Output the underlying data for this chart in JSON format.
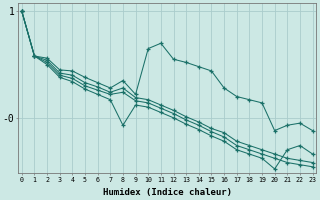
{
  "xlabel": "Humidex (Indice chaleur)",
  "bg_color": "#cce8e4",
  "grid_color": "#aacccc",
  "line_color": "#1a7068",
  "xlim": [
    -0.3,
    23.3
  ],
  "ylim": [
    -0.52,
    1.08
  ],
  "series": [
    {
      "x": [
        0,
        1,
        2,
        3,
        4,
        5,
        6,
        7,
        8,
        9,
        10,
        11,
        12,
        13,
        14,
        15,
        16,
        17,
        18,
        19,
        20,
        21,
        22,
        23
      ],
      "y": [
        1.0,
        0.58,
        0.56,
        0.45,
        0.44,
        0.38,
        0.33,
        0.28,
        0.35,
        0.22,
        0.65,
        0.7,
        0.55,
        0.52,
        0.48,
        0.44,
        0.28,
        0.2,
        0.17,
        0.14,
        -0.12,
        -0.07,
        -0.05,
        -0.12
      ]
    },
    {
      "x": [
        0,
        1,
        2,
        3,
        4,
        5,
        6,
        7,
        8,
        9,
        10,
        11,
        12,
        13,
        14,
        15,
        16,
        17,
        18,
        19,
        20,
        21,
        22,
        23
      ],
      "y": [
        1.0,
        0.58,
        0.54,
        0.42,
        0.4,
        0.33,
        0.29,
        0.24,
        0.28,
        0.19,
        0.17,
        0.12,
        0.07,
        0.01,
        -0.04,
        -0.1,
        -0.14,
        -0.22,
        -0.26,
        -0.3,
        -0.34,
        -0.38,
        -0.4,
        -0.42
      ]
    },
    {
      "x": [
        0,
        1,
        2,
        3,
        4,
        5,
        6,
        7,
        8,
        9,
        10,
        11,
        12,
        13,
        14,
        15,
        16,
        17,
        18,
        19,
        20,
        21,
        22,
        23
      ],
      "y": [
        1.0,
        0.58,
        0.52,
        0.4,
        0.37,
        0.3,
        0.26,
        0.22,
        0.24,
        0.16,
        0.14,
        0.09,
        0.04,
        -0.02,
        -0.07,
        -0.13,
        -0.18,
        -0.26,
        -0.3,
        -0.34,
        -0.38,
        -0.42,
        -0.44,
        -0.46
      ]
    },
    {
      "x": [
        0,
        1,
        2,
        3,
        4,
        5,
        6,
        7,
        8,
        9,
        10,
        11,
        12,
        13,
        14,
        15,
        16,
        17,
        18,
        19,
        20,
        21,
        22,
        23
      ],
      "y": [
        1.0,
        0.58,
        0.5,
        0.38,
        0.34,
        0.27,
        0.22,
        0.17,
        -0.07,
        0.12,
        0.1,
        0.05,
        0.0,
        -0.06,
        -0.11,
        -0.17,
        -0.22,
        -0.3,
        -0.34,
        -0.38,
        -0.48,
        -0.3,
        -0.26,
        -0.34
      ]
    }
  ]
}
